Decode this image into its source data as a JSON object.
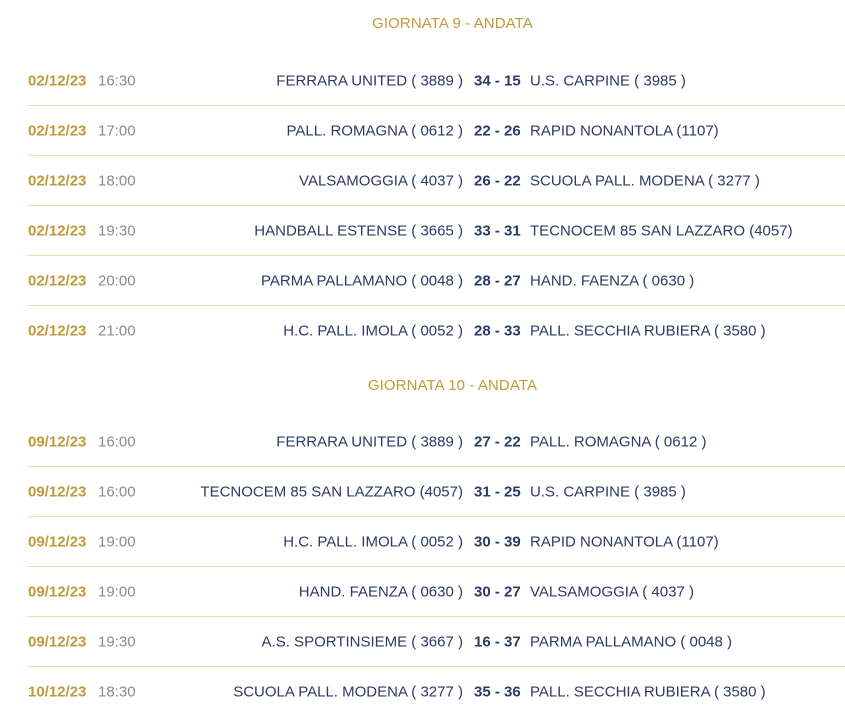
{
  "rounds": [
    {
      "title": "GIORNATA 9 - ANDATA",
      "matches": [
        {
          "date": "02/12/23",
          "time": "16:30",
          "home": "FERRARA UNITED ( 3889 )",
          "score": "34 - 15",
          "away": "U.S. CARPINE ( 3985 )"
        },
        {
          "date": "02/12/23",
          "time": "17:00",
          "home": "PALL. ROMAGNA ( 0612 )",
          "score": "22 - 26",
          "away": "RAPID NONANTOLA (1107)"
        },
        {
          "date": "02/12/23",
          "time": "18:00",
          "home": "VALSAMOGGIA ( 4037 )",
          "score": "26 - 22",
          "away": "SCUOLA PALL. MODENA ( 3277 )"
        },
        {
          "date": "02/12/23",
          "time": "19:30",
          "home": "HANDBALL ESTENSE ( 3665 )",
          "score": "33 - 31",
          "away": "TECNOCEM 85 SAN LAZZARO (4057)"
        },
        {
          "date": "02/12/23",
          "time": "20:00",
          "home": "PARMA PALLAMANO ( 0048 )",
          "score": "28 - 27",
          "away": "HAND. FAENZA ( 0630 )"
        },
        {
          "date": "02/12/23",
          "time": "21:00",
          "home": "H.C. PALL. IMOLA ( 0052 )",
          "score": "28 - 33",
          "away": "PALL. SECCHIA RUBIERA ( 3580 )"
        }
      ]
    },
    {
      "title": "GIORNATA 10 - ANDATA",
      "matches": [
        {
          "date": "09/12/23",
          "time": "16:00",
          "home": "FERRARA UNITED ( 3889 )",
          "score": "27 - 22",
          "away": "PALL. ROMAGNA ( 0612 )"
        },
        {
          "date": "09/12/23",
          "time": "16:00",
          "home": "TECNOCEM 85 SAN LAZZARO (4057)",
          "score": "31 - 25",
          "away": "U.S. CARPINE ( 3985 )"
        },
        {
          "date": "09/12/23",
          "time": "19:00",
          "home": "H.C. PALL. IMOLA ( 0052 )",
          "score": "30 - 39",
          "away": "RAPID NONANTOLA (1107)"
        },
        {
          "date": "09/12/23",
          "time": "19:00",
          "home": "HAND. FAENZA ( 0630 )",
          "score": "30 - 27",
          "away": "VALSAMOGGIA ( 4037 )"
        },
        {
          "date": "09/12/23",
          "time": "19:30",
          "home": "A.S. SPORTINSIEME ( 3667 )",
          "score": "16 - 37",
          "away": "PARMA PALLAMANO ( 0048 )"
        },
        {
          "date": "10/12/23",
          "time": "18:30",
          "home": "SCUOLA PALL. MODENA ( 3277 )",
          "score": "35 - 36",
          "away": "PALL. SECCHIA RUBIERA ( 3580 )"
        }
      ]
    }
  ]
}
